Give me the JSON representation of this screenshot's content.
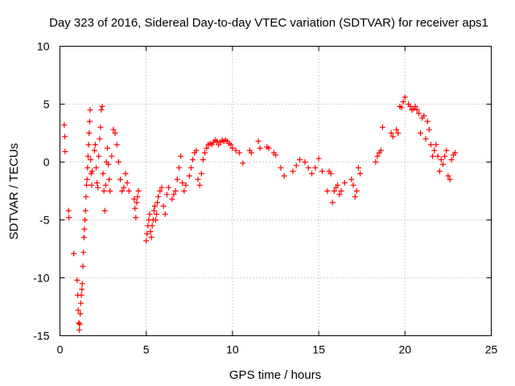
{
  "chart_data": {
    "type": "scatter",
    "title": "Day 323 of 2016, Sidereal Day-to-day VTEC variation (SDTVAR) for receiver aps1",
    "xlabel": "GPS time / hours",
    "ylabel": "SDTVAR / TECUs",
    "xlim": [
      0,
      25
    ],
    "ylim": [
      -15,
      10
    ],
    "xticks": [
      0,
      5,
      10,
      15,
      20,
      25
    ],
    "yticks": [
      -15,
      -10,
      -5,
      0,
      5,
      10
    ],
    "xtick_labels": [
      "0",
      "5",
      "10",
      "15",
      "20",
      "25"
    ],
    "ytick_labels": [
      "-15",
      "-10",
      "-5",
      "0",
      "5",
      "10"
    ],
    "grid": true,
    "marker": "+",
    "color": "#ff0000",
    "series": [
      {
        "name": "aps1",
        "x": [
          0.25,
          0.28,
          0.3,
          0.5,
          0.52,
          0.8,
          1.0,
          1.03,
          1.06,
          1.09,
          1.12,
          1.15,
          1.18,
          1.21,
          1.24,
          1.27,
          1.3,
          1.33,
          1.36,
          1.39,
          1.42,
          1.45,
          1.48,
          1.51,
          1.54,
          1.57,
          1.6,
          1.63,
          1.66,
          1.69,
          1.72,
          1.75,
          1.78,
          1.81,
          1.84,
          1.87,
          2.0,
          2.05,
          2.1,
          2.15,
          2.2,
          2.25,
          2.3,
          2.35,
          2.4,
          2.45,
          2.5,
          2.55,
          2.6,
          2.65,
          2.7,
          2.75,
          2.8,
          2.85,
          2.9,
          3.0,
          3.1,
          3.2,
          3.3,
          3.4,
          3.5,
          3.6,
          3.7,
          3.8,
          3.9,
          4.0,
          4.3,
          4.35,
          4.4,
          4.45,
          4.5,
          4.55,
          5.0,
          5.05,
          5.1,
          5.15,
          5.2,
          5.25,
          5.3,
          5.35,
          5.4,
          5.45,
          5.5,
          5.55,
          5.6,
          5.65,
          5.7,
          5.8,
          5.9,
          6.0,
          6.1,
          6.2,
          6.3,
          6.5,
          6.6,
          6.7,
          6.8,
          6.9,
          7.0,
          7.1,
          7.2,
          7.3,
          7.5,
          7.6,
          7.7,
          7.8,
          7.9,
          8.0,
          8.1,
          8.2,
          8.3,
          8.4,
          8.5,
          8.6,
          8.7,
          8.8,
          8.9,
          9.0,
          9.1,
          9.2,
          9.3,
          9.4,
          9.5,
          9.6,
          9.7,
          9.8,
          9.9,
          10.0,
          10.2,
          10.4,
          10.6,
          11.0,
          11.1,
          11.5,
          11.6,
          12.0,
          12.1,
          12.4,
          12.5,
          12.8,
          13.0,
          13.5,
          13.7,
          13.9,
          14.2,
          14.4,
          14.6,
          14.8,
          15.0,
          15.2,
          15.5,
          15.6,
          15.7,
          15.8,
          15.9,
          16.0,
          16.1,
          16.2,
          16.3,
          16.5,
          16.9,
          17.0,
          17.1,
          17.2,
          17.3,
          17.4,
          18.3,
          18.4,
          18.5,
          18.6,
          18.7,
          19.2,
          19.3,
          19.5,
          19.6,
          19.7,
          19.8,
          19.9,
          20.0,
          20.2,
          20.3,
          20.4,
          20.5,
          20.6,
          20.7,
          20.8,
          20.9,
          21.0,
          21.1,
          21.2,
          21.3,
          21.4,
          21.5,
          21.6,
          21.7,
          21.8,
          21.9,
          22.0,
          22.1,
          22.2,
          22.3,
          22.4,
          22.5,
          22.6,
          22.7,
          22.8,
          22.9
        ],
        "y": [
          3.2,
          2.2,
          0.9,
          -4.2,
          -4.8,
          -7.9,
          -10.2,
          -11.5,
          -12.8,
          -13.9,
          -14.5,
          -14.0,
          -13.1,
          -12.2,
          -11.5,
          -11.0,
          -10.5,
          -9.0,
          -7.8,
          -6.5,
          -5.8,
          -5.0,
          -4.2,
          -3.0,
          -2.0,
          -1.5,
          -0.5,
          0.5,
          1.5,
          2.5,
          3.5,
          4.5,
          0.2,
          -1.0,
          -2.0,
          -0.8,
          1.0,
          1.5,
          -0.5,
          -1.8,
          -2.2,
          0.5,
          2.0,
          3.0,
          4.5,
          4.8,
          -1.0,
          -2.5,
          -4.2,
          -2.0,
          0.0,
          1.2,
          -0.2,
          -1.5,
          -2.5,
          0.5,
          2.8,
          2.5,
          1.5,
          0.0,
          -1.5,
          -2.5,
          -2.2,
          -1.0,
          -1.8,
          -2.5,
          -3.2,
          -4.0,
          -4.8,
          -3.5,
          -3.0,
          -2.5,
          -6.8,
          -6.2,
          -5.5,
          -5.0,
          -4.5,
          -6.0,
          -6.5,
          -5.5,
          -5.0,
          -4.2,
          -3.8,
          -5.0,
          -4.5,
          -3.5,
          -3.0,
          -2.5,
          -2.2,
          -3.8,
          -4.5,
          -2.8,
          -2.2,
          -3.2,
          -2.8,
          -2.5,
          -1.5,
          -0.5,
          0.5,
          -1.8,
          -2.5,
          -2.0,
          -1.2,
          -0.5,
          0.2,
          0.8,
          1.0,
          -1.5,
          -2.0,
          -1.0,
          0.2,
          0.8,
          1.2,
          1.5,
          1.6,
          1.5,
          1.7,
          1.9,
          1.8,
          1.5,
          1.7,
          1.9,
          1.8,
          1.9,
          1.8,
          1.6,
          1.5,
          1.2,
          1.0,
          0.8,
          -0.1,
          1.0,
          0.8,
          1.8,
          1.2,
          1.3,
          1.2,
          0.8,
          0.6,
          -0.5,
          -1.2,
          -0.8,
          -0.3,
          0.2,
          0.0,
          -0.5,
          -1.0,
          -0.5,
          0.3,
          -0.8,
          -2.5,
          -0.8,
          -1.0,
          -3.5,
          -2.5,
          -2.2,
          -2.0,
          -2.8,
          -2.5,
          -1.8,
          -1.5,
          -2.0,
          -3.0,
          -2.5,
          -0.5,
          -1.0,
          0.0,
          0.5,
          0.8,
          1.0,
          3.0,
          2.5,
          2.2,
          2.8,
          2.5,
          4.8,
          4.7,
          5.2,
          5.6,
          5.0,
          4.8,
          4.5,
          4.6,
          4.8,
          4.5,
          4.2,
          2.5,
          3.8,
          4.0,
          2.0,
          3.5,
          2.8,
          1.5,
          0.5,
          1.0,
          1.5,
          0.5,
          -0.8,
          0.2,
          -0.2,
          0.5,
          1.0,
          -1.2,
          -1.5,
          0.2,
          0.6,
          0.8
        ]
      }
    ]
  }
}
